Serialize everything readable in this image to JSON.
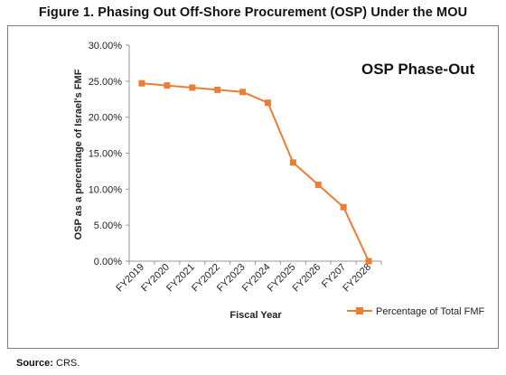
{
  "figure_title": "Figure 1. Phasing Out Off-Shore Procurement (OSP) Under the MOU",
  "source": {
    "label": "Source:",
    "text": " CRS."
  },
  "colors": {
    "series": "#ed7d31",
    "axis": "#9a9a9a",
    "frame": "#7f7f7f"
  },
  "chart_data": {
    "type": "line",
    "title": "",
    "annotation": "OSP Phase-Out",
    "xlabel": "Fiscal Year",
    "ylabel": "OSP as a percentage of Israel's FMF",
    "categories": [
      "FY2019",
      "FY2020",
      "FY2021",
      "FY2022",
      "FY2023",
      "FY2024",
      "FY2025",
      "FY2026",
      "FY207",
      "FY2028"
    ],
    "series": [
      {
        "name": "Percentage of Total FMF",
        "values": [
          24.7,
          24.4,
          24.1,
          23.8,
          23.5,
          22.0,
          13.7,
          10.6,
          7.5,
          0.0
        ]
      }
    ],
    "ylim": [
      0,
      30
    ],
    "yticks": [
      "0.00%",
      "5.00%",
      "10.00%",
      "15.00%",
      "20.00%",
      "25.00%",
      "30.00%"
    ],
    "grid": false,
    "legend_position": "bottom-right",
    "marker": "square"
  }
}
